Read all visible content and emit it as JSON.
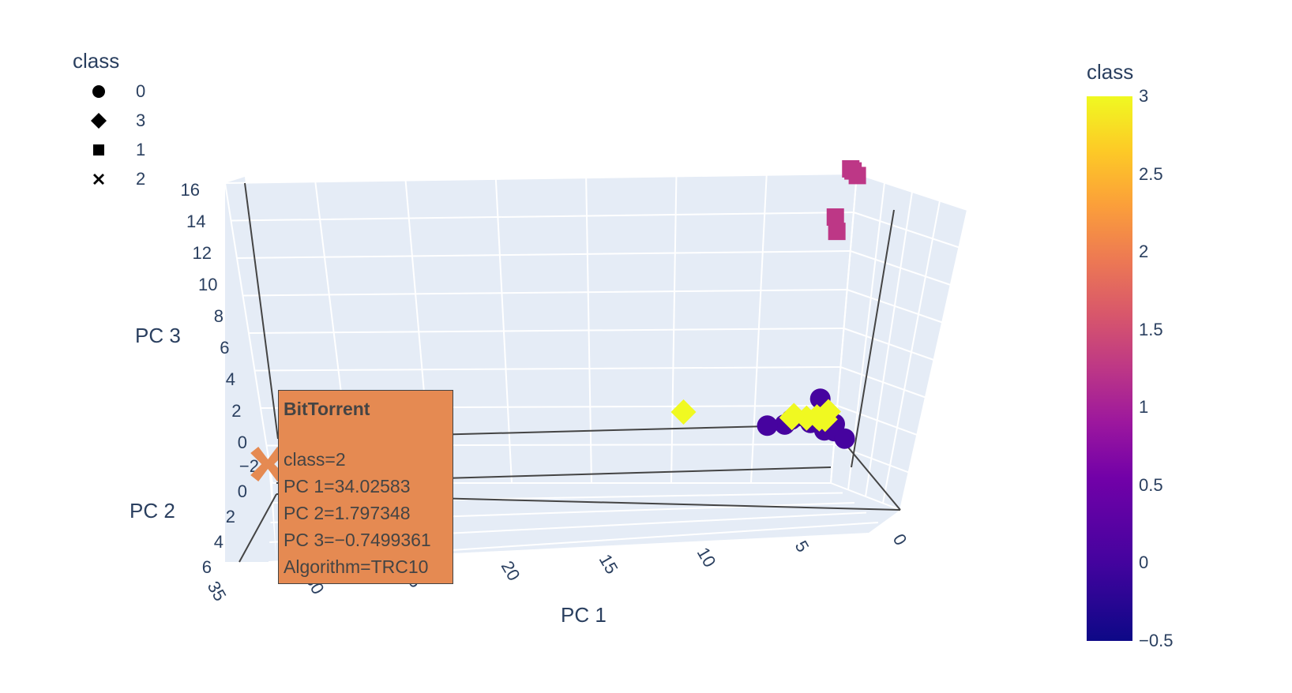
{
  "legend": {
    "title": "class",
    "items": [
      {
        "label": "0",
        "symbol": "circle"
      },
      {
        "label": "3",
        "symbol": "diamond"
      },
      {
        "label": "1",
        "symbol": "square"
      },
      {
        "label": "2",
        "symbol": "x"
      }
    ]
  },
  "colorbar": {
    "title": "class",
    "ticks": [
      "3",
      "2.5",
      "2",
      "1.5",
      "1",
      "0.5",
      "0",
      "−0.5"
    ],
    "range": [
      -0.5,
      3
    ],
    "colorscale": [
      "#0d0887",
      "#46039f",
      "#7201a8",
      "#9c179e",
      "#bd3786",
      "#d8576b",
      "#ed7953",
      "#fb9f3a",
      "#fdca26",
      "#f0f921"
    ]
  },
  "hover": {
    "name": "BitTorrent",
    "class": "class=2",
    "pc1": "PC 1=34.02583",
    "pc2": "PC 2=1.797348",
    "pc3": "PC 3=−0.7499361",
    "algorithm": "Algorithm=TRC10"
  },
  "chart_data": {
    "type": "scatter3d",
    "axes": {
      "x": {
        "title": "PC 1",
        "ticks": [
          "35",
          "30",
          "25",
          "20",
          "15",
          "10",
          "5",
          "0"
        ]
      },
      "y": {
        "title": "PC 2",
        "ticks": [
          "−2",
          "0",
          "2",
          "4",
          "6"
        ]
      },
      "z": {
        "title": "PC 3",
        "ticks": [
          "16",
          "14",
          "12",
          "10",
          "8",
          "6",
          "4",
          "2",
          "0"
        ]
      }
    },
    "series": [
      {
        "name": "0",
        "symbol": "circle",
        "color": "#46039f",
        "points": [
          [
            1.2,
            0.5,
            0.8
          ],
          [
            1.0,
            0.2,
            0.5
          ],
          [
            1.3,
            0.0,
            0.3
          ],
          [
            2.0,
            -0.3,
            0.2
          ],
          [
            1.5,
            0.1,
            0.1
          ],
          [
            3.0,
            -0.4,
            0.3
          ],
          [
            3.8,
            0.2,
            0.5
          ],
          [
            0.8,
            -0.1,
            -0.1
          ],
          [
            0.5,
            0.3,
            -0.2
          ],
          [
            1.8,
            0.2,
            2.0
          ],
          [
            4.5,
            -0.2,
            0.1
          ]
        ]
      },
      {
        "name": "3",
        "symbol": "diamond",
        "color": "#f0f921",
        "points": [
          [
            9.0,
            -0.5,
            0.6
          ],
          [
            2.0,
            0.4,
            1.0
          ],
          [
            2.5,
            0.1,
            0.8
          ],
          [
            1.6,
            0.3,
            0.9
          ],
          [
            3.0,
            -0.2,
            0.7
          ],
          [
            1.2,
            0.0,
            1.1
          ],
          [
            2.2,
            0.5,
            1.2
          ],
          [
            3.4,
            0.2,
            0.9
          ]
        ]
      },
      {
        "name": "1",
        "symbol": "square",
        "color": "#bd3786",
        "points": [
          [
            0.3,
            0.5,
            15.5
          ],
          [
            0.1,
            0.4,
            15.3
          ],
          [
            0.0,
            0.6,
            15.2
          ],
          [
            0.3,
            -0.6,
            11.0
          ],
          [
            0.1,
            -1.0,
            11.5
          ]
        ]
      },
      {
        "name": "2",
        "symbol": "x",
        "color": "#e58a52",
        "points": [
          [
            34.02583,
            1.797348,
            -0.7499361
          ]
        ]
      }
    ]
  }
}
